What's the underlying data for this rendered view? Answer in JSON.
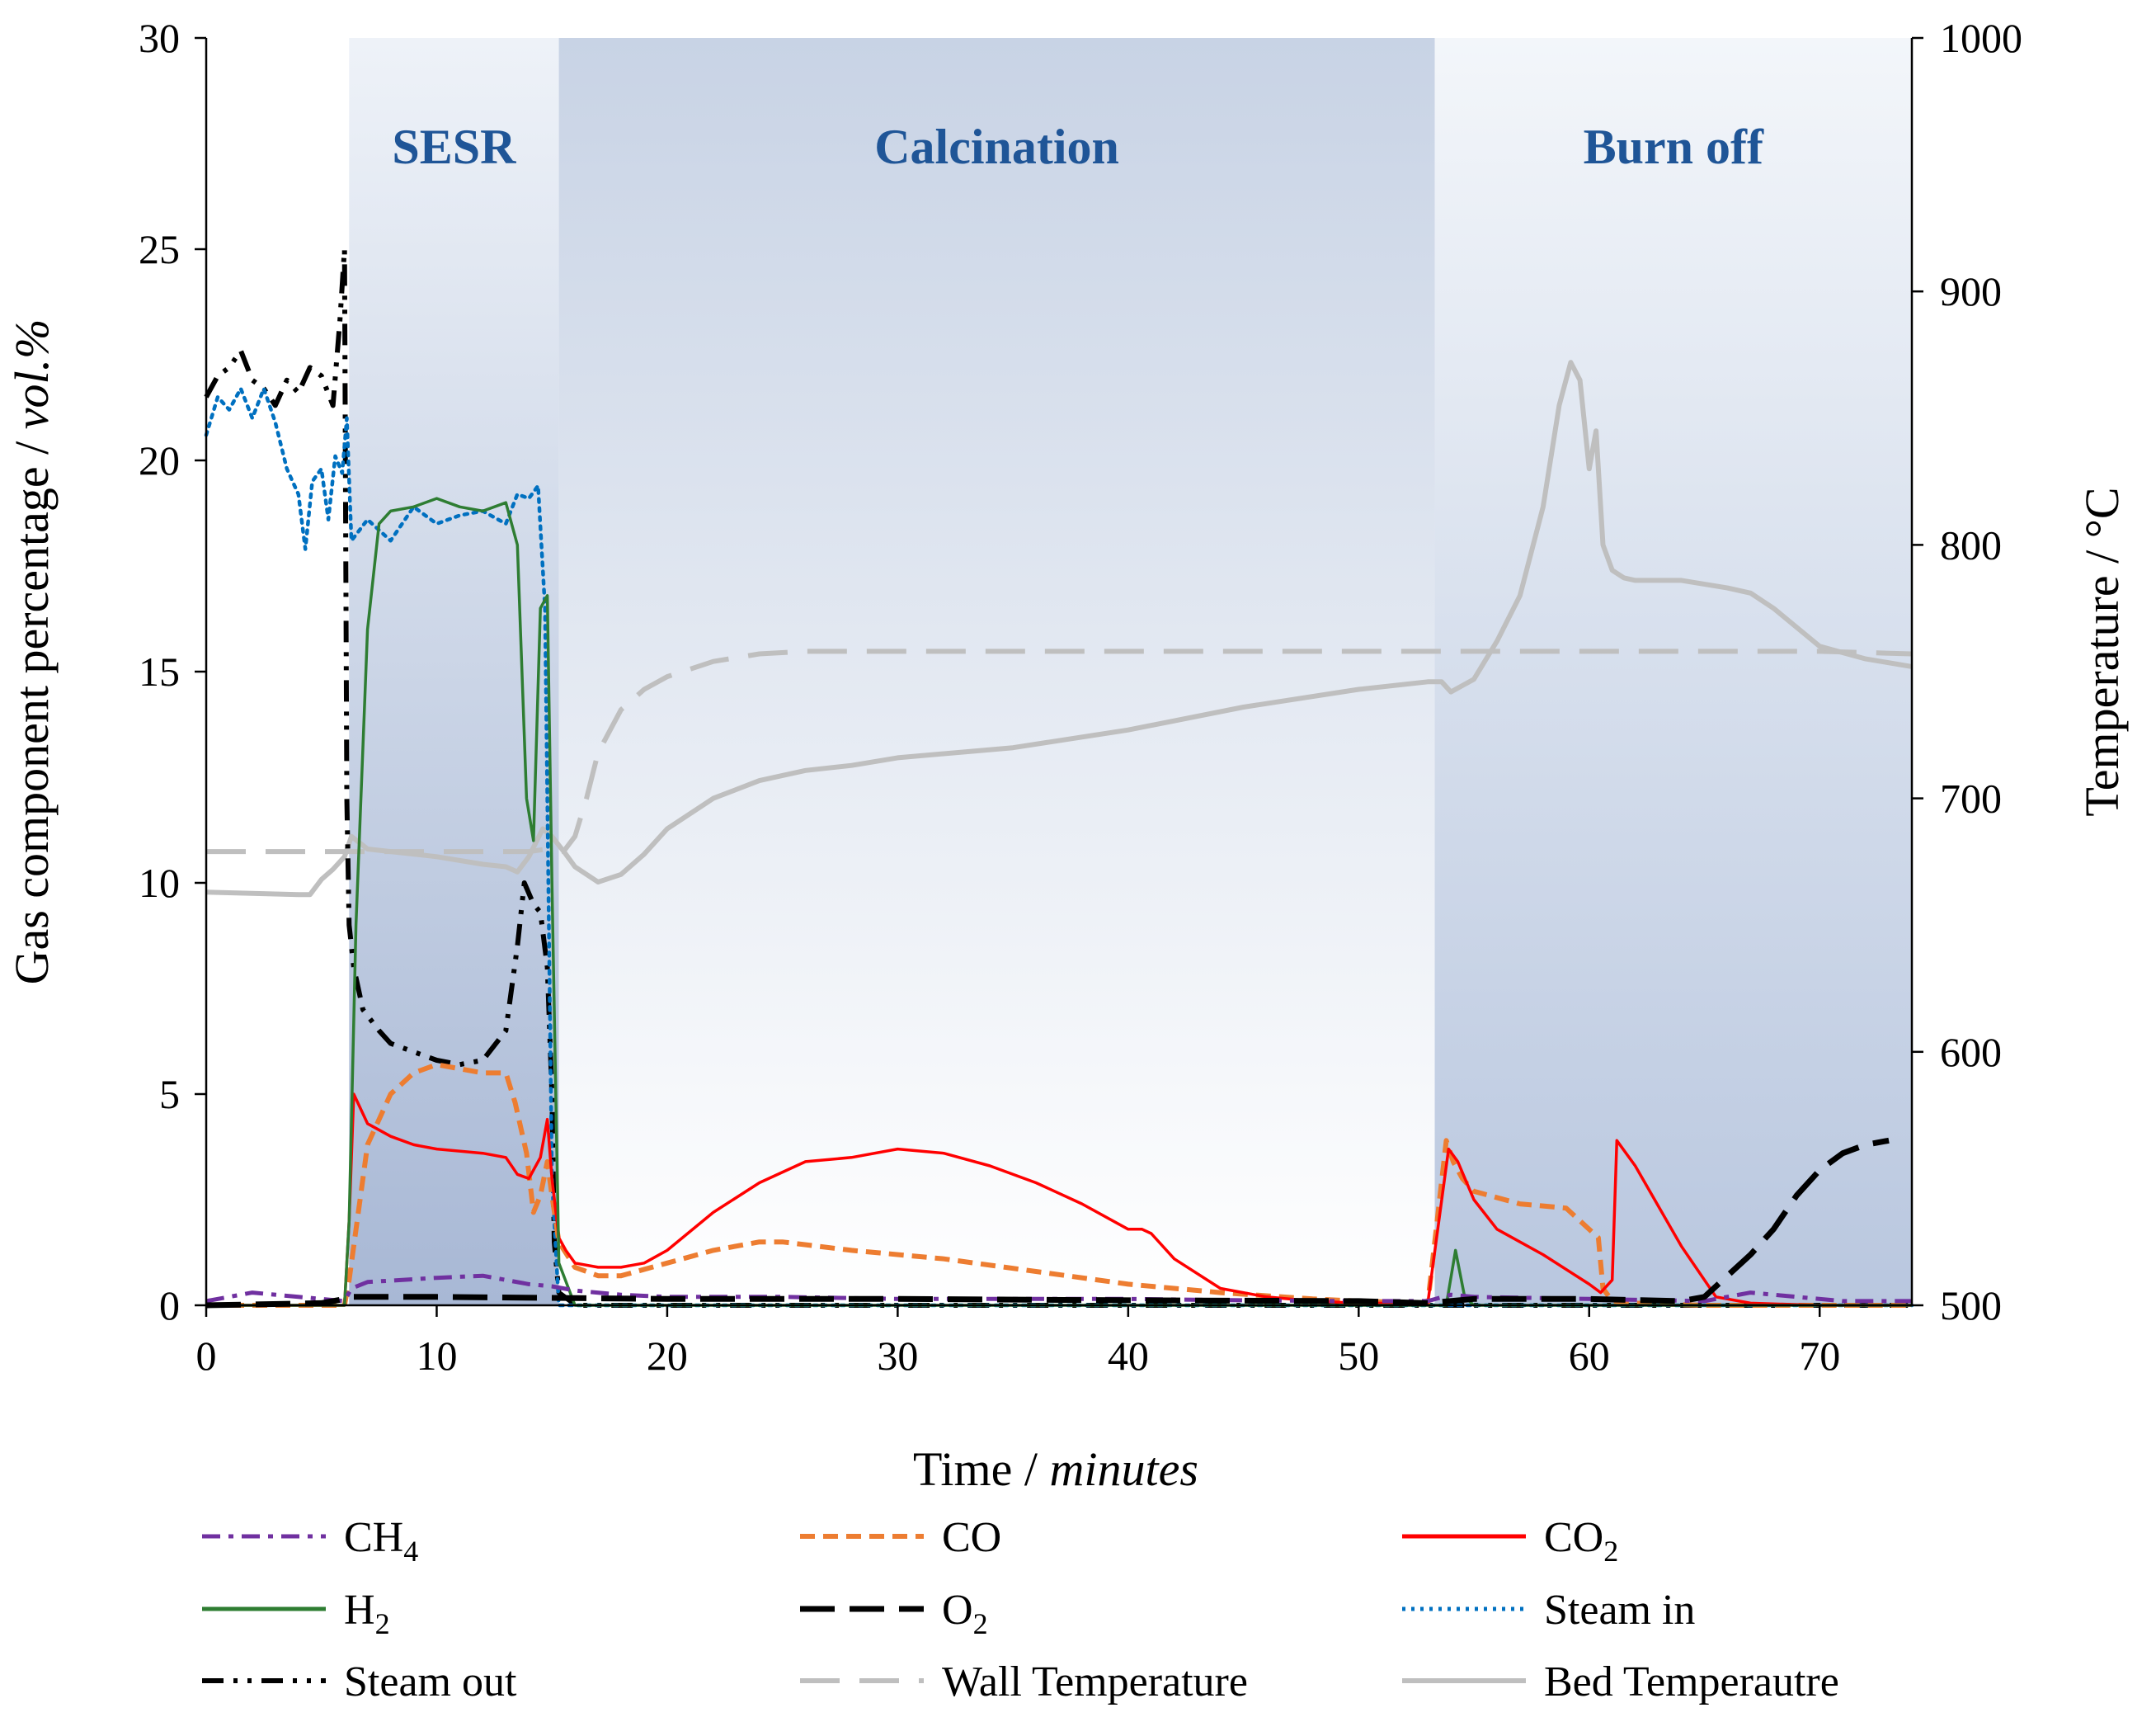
{
  "colors": {
    "ch4": "#7030a0",
    "co": "#ed7d31",
    "co2": "#ff0000",
    "h2": "#2e7d32",
    "o2": "#000000",
    "steam_in": "#0070c0",
    "steam_out": "#000000",
    "wall_temp": "#bfbfbf",
    "bed_temp": "#bfbfbf",
    "phase_text": "#1f5597",
    "phase_fill": "#8ea5c9"
  },
  "chart_data": {
    "type": "line",
    "xlabel": "Time / ",
    "xlabel_unit": "minutes",
    "ylabel": "Gas component percentage / ",
    "ylabel_unit": "vol.%",
    "y2label": "Temperature / °C",
    "xlim": [
      0,
      74
    ],
    "ylim": [
      0,
      30
    ],
    "y2lim": [
      500,
      1000
    ],
    "xticks": [
      0,
      10,
      20,
      30,
      40,
      50,
      60,
      70
    ],
    "yticks": [
      0,
      5,
      10,
      15,
      20,
      25,
      30
    ],
    "y2ticks": [
      500,
      600,
      700,
      800,
      900,
      1000
    ],
    "phases": [
      {
        "label": "SESR",
        "start": 6.2,
        "end": 15.3
      },
      {
        "label": "Calcination",
        "start": 15.3,
        "end": 53.3
      },
      {
        "label": "Burn off",
        "start": 53.3,
        "end": 74
      }
    ],
    "series": [
      {
        "key": "ch4",
        "name": "CH",
        "sub": "4",
        "axis": "left",
        "style": "dashdot",
        "x": [
          0,
          2,
          4,
          6,
          6.3,
          7,
          10,
          12,
          14,
          15,
          16,
          18,
          20,
          25,
          30,
          35,
          40,
          45,
          50,
          53,
          54,
          55,
          60,
          65,
          67,
          69,
          71,
          74
        ],
        "y": [
          0.1,
          0.3,
          0.2,
          0.1,
          0.4,
          0.55,
          0.65,
          0.7,
          0.5,
          0.45,
          0.35,
          0.25,
          0.2,
          0.2,
          0.15,
          0.15,
          0.15,
          0.12,
          0.1,
          0.1,
          0.25,
          0.2,
          0.15,
          0.1,
          0.3,
          0.2,
          0.1,
          0.1
        ]
      },
      {
        "key": "co",
        "name": "CO",
        "sub": "",
        "axis": "left",
        "style": "dashed",
        "x": [
          0,
          6,
          6.2,
          7,
          8,
          9,
          10,
          11,
          12,
          13,
          13.4,
          13.9,
          14.2,
          14.5,
          14.8,
          15.0,
          15.3,
          16,
          17,
          18,
          20,
          22,
          24,
          25,
          28,
          32,
          36,
          40,
          44,
          48,
          50,
          53,
          53.8,
          54.1,
          54.5,
          55,
          57,
          59,
          60.4,
          60.6,
          61,
          62,
          65,
          70,
          74
        ],
        "y": [
          0,
          0,
          0.6,
          3.8,
          5.0,
          5.5,
          5.7,
          5.6,
          5.5,
          5.5,
          4.8,
          3.6,
          2.2,
          2.6,
          3.4,
          2.6,
          1.5,
          0.9,
          0.7,
          0.7,
          1.0,
          1.3,
          1.5,
          1.5,
          1.3,
          1.1,
          0.8,
          0.5,
          0.3,
          0.15,
          0.1,
          0.05,
          3.9,
          3.4,
          3.0,
          2.7,
          2.4,
          2.3,
          1.6,
          0.4,
          0.1,
          0.05,
          0,
          0,
          0
        ]
      },
      {
        "key": "co2",
        "name": "CO",
        "sub": "2",
        "axis": "left",
        "style": "solid",
        "x": [
          0,
          6,
          6.2,
          6.4,
          7,
          8,
          9,
          10,
          12,
          13,
          13.5,
          14,
          14.5,
          14.8,
          15.0,
          15.3,
          15.6,
          16,
          17,
          18,
          19,
          20,
          22,
          24,
          26,
          28,
          30,
          32,
          34,
          36,
          38,
          40,
          40.6,
          41,
          42,
          44,
          46,
          48,
          50,
          53,
          53.9,
          54.3,
          55,
          56,
          58,
          60,
          60.5,
          61,
          61.2,
          62,
          64,
          65.5,
          67,
          70,
          74
        ],
        "y": [
          0,
          0,
          2,
          5.0,
          4.3,
          4.0,
          3.8,
          3.7,
          3.6,
          3.5,
          3.1,
          3.0,
          3.5,
          4.4,
          3.0,
          1.6,
          1.3,
          1.0,
          0.9,
          0.9,
          1.0,
          1.3,
          2.2,
          2.9,
          3.4,
          3.5,
          3.7,
          3.6,
          3.3,
          2.9,
          2.4,
          1.8,
          1.8,
          1.7,
          1.1,
          0.4,
          0.2,
          0.1,
          0.05,
          0.05,
          3.7,
          3.4,
          2.5,
          1.8,
          1.2,
          0.5,
          0.3,
          0.6,
          3.9,
          3.3,
          1.4,
          0.2,
          0.05,
          0,
          0
        ]
      },
      {
        "key": "h2",
        "name": "H",
        "sub": "2",
        "axis": "left",
        "style": "solid",
        "x": [
          0,
          6,
          6.2,
          6.5,
          7,
          7.5,
          8,
          9,
          10,
          11,
          12,
          13,
          13.5,
          13.9,
          14.2,
          14.5,
          14.8,
          15.0,
          15.3,
          16,
          30,
          53.8,
          54.2,
          54.6,
          55,
          74
        ],
        "y": [
          0,
          0,
          2,
          9,
          16,
          18.5,
          18.8,
          18.9,
          19.1,
          18.9,
          18.8,
          19.0,
          18.0,
          12.0,
          11.0,
          16.5,
          16.8,
          10.0,
          1.0,
          0,
          0,
          0,
          1.3,
          0.2,
          0,
          0
        ]
      },
      {
        "key": "o2",
        "name": "O",
        "sub": "2",
        "axis": "left",
        "style": "longdash",
        "x": [
          0,
          5,
          6,
          6.2,
          10,
          20,
          30,
          40,
          50,
          53,
          55,
          60,
          64,
          65,
          66,
          67,
          68,
          69,
          70,
          71,
          72,
          73
        ],
        "y": [
          0,
          0.05,
          0.15,
          0.2,
          0.2,
          0.15,
          0.15,
          0.12,
          0.1,
          0.05,
          0.15,
          0.15,
          0.1,
          0.2,
          0.7,
          1.2,
          1.8,
          2.6,
          3.2,
          3.6,
          3.8,
          3.9
        ]
      },
      {
        "key": "steam_in",
        "name": "Steam in",
        "sub": "",
        "axis": "left",
        "style": "dotted",
        "x": [
          0,
          0.5,
          1,
          1.5,
          2,
          2.5,
          3,
          3.5,
          4,
          4.3,
          4.6,
          5,
          5.3,
          5.6,
          5.9,
          6.1,
          6.3,
          7,
          8,
          9,
          10,
          11,
          12,
          13,
          13.5,
          14,
          14.4,
          14.7,
          15.0,
          15.3,
          16,
          74
        ],
        "y": [
          20.6,
          21.5,
          21.2,
          21.7,
          21.0,
          21.7,
          20.9,
          19.8,
          19.2,
          17.9,
          19.5,
          19.8,
          18.6,
          20.1,
          19.7,
          21.0,
          18.1,
          18.6,
          18.1,
          18.9,
          18.5,
          18.7,
          18.8,
          18.5,
          19.2,
          19.1,
          19.4,
          16.5,
          3,
          0,
          0,
          0
        ]
      },
      {
        "key": "steam_out",
        "name": "Steam out",
        "sub": "",
        "axis": "left",
        "style": "dashdotdot",
        "x": [
          0,
          0.5,
          1,
          1.5,
          2,
          2.5,
          3,
          3.5,
          4,
          4.5,
          5,
          5.5,
          5.8,
          6.0,
          6.1,
          6.2,
          6.4,
          6.8,
          7.5,
          8,
          9,
          10,
          11,
          12,
          13,
          13.5,
          13.8,
          14.2,
          14.5,
          14.8,
          15.0,
          15.1,
          15.3,
          15.8,
          16,
          74
        ],
        "y": [
          21.5,
          22,
          22.2,
          22.6,
          21.9,
          21.7,
          21.3,
          21.9,
          21.6,
          22.2,
          22.0,
          21.3,
          23.3,
          25.0,
          12,
          9,
          8,
          7.0,
          6.5,
          6.2,
          6.0,
          5.8,
          5.7,
          5.8,
          6.5,
          8.5,
          10.0,
          9.5,
          9.3,
          8.0,
          5.0,
          1.5,
          0.3,
          0.1,
          0,
          0
        ]
      },
      {
        "key": "wall_temp",
        "name": "Wall Temperature",
        "sub": "",
        "axis": "right",
        "style": "dashed-temp",
        "x": [
          0,
          5,
          6,
          6.5,
          10,
          12,
          14,
          14.8,
          15.5,
          16,
          16.5,
          17,
          18,
          19,
          20,
          22,
          24,
          26,
          30,
          40,
          50,
          60,
          65,
          70,
          74
        ],
        "y": [
          679,
          679,
          679,
          679,
          679,
          679,
          679,
          680,
          679,
          685,
          700,
          718,
          735,
          743,
          748,
          754,
          757,
          758,
          758,
          758,
          758,
          758,
          758,
          758,
          757
        ]
      },
      {
        "key": "bed_temp",
        "name": "Bed Temperautre",
        "sub": "",
        "axis": "right",
        "style": "solid-temp",
        "x": [
          0,
          4,
          4.5,
          5,
          5.5,
          6,
          6.3,
          7,
          8,
          10,
          12,
          13,
          13.5,
          14,
          14.6,
          15,
          15.6,
          16,
          17,
          18,
          19,
          20,
          22,
          24,
          26,
          28,
          30,
          35,
          40,
          45,
          50,
          53,
          53.6,
          54,
          55,
          56,
          57,
          58,
          58.7,
          59.2,
          59.6,
          60,
          60.3,
          60.6,
          61,
          61.5,
          62,
          64,
          66,
          67,
          68,
          70,
          72,
          74
        ],
        "y": [
          663,
          662,
          662,
          668,
          672,
          677,
          685,
          680,
          679,
          677,
          674,
          673,
          671,
          677,
          688,
          685,
          678,
          673,
          667,
          670,
          678,
          688,
          700,
          707,
          711,
          713,
          716,
          720,
          727,
          736,
          743,
          746,
          746,
          742,
          747,
          762,
          780,
          815,
          855,
          872,
          865,
          830,
          845,
          800,
          790,
          787,
          786,
          786,
          783,
          781,
          775,
          760,
          755,
          752
        ]
      }
    ]
  }
}
